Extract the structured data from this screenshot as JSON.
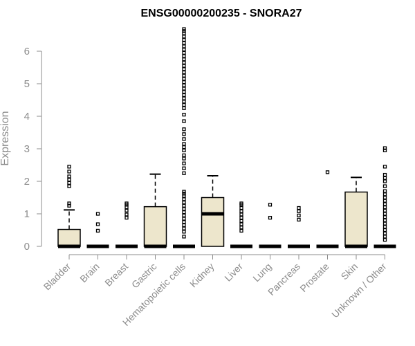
{
  "chart_data": {
    "type": "boxplot",
    "title": "ENSG00000200235 - SNORA27",
    "xlabel": "",
    "ylabel": "Expression",
    "ylim": [
      0,
      6.7
    ],
    "y_ticks": [
      0,
      1,
      2,
      3,
      4,
      5,
      6
    ],
    "grid": false,
    "legend": "none",
    "colors": {
      "box_fill": "#ede6cc",
      "stroke": "#000000",
      "axis": "#8c8c8c",
      "label": "#8c8c8c",
      "title": "#000000"
    },
    "categories": [
      "Bladder",
      "Brain",
      "Breast",
      "Gastric",
      "Hematopoietic cells",
      "Kidney",
      "Liver",
      "Lung",
      "Pancreas",
      "Prostate",
      "Skin",
      "Unknown / Other"
    ],
    "boxes": [
      {
        "q1": 0,
        "median": 0,
        "q3": 0.52,
        "whisker_low": 0,
        "whisker_high": 1.12,
        "outliers": [
          1.25,
          1.32,
          1.85,
          1.95,
          2.05,
          2.15,
          2.3,
          2.45
        ]
      },
      {
        "q1": 0,
        "median": 0,
        "q3": 0,
        "whisker_low": 0,
        "whisker_high": 0,
        "outliers": [
          0.48,
          0.68,
          1.0
        ]
      },
      {
        "q1": 0,
        "median": 0,
        "q3": 0,
        "whisker_low": 0,
        "whisker_high": 0,
        "outliers": [
          0.88,
          0.98,
          1.1,
          1.2,
          1.28,
          1.32
        ]
      },
      {
        "q1": 0,
        "median": 0,
        "q3": 1.22,
        "whisker_low": 0,
        "whisker_high": 2.22,
        "outliers": []
      },
      {
        "q1": 0,
        "median": 0,
        "q3": 0,
        "whisker_low": 0,
        "whisker_high": 0,
        "outliers": [
          0.3,
          0.45,
          0.55,
          0.65,
          0.75,
          0.85,
          0.95,
          1.05,
          1.15,
          1.25,
          1.35,
          1.45,
          1.55,
          1.62,
          1.68,
          2.25,
          2.4,
          2.55,
          2.7,
          2.8,
          2.95,
          3.05,
          3.15,
          3.3,
          3.45,
          3.6,
          3.85,
          4.05,
          4.25,
          4.35,
          4.45,
          4.55,
          4.65,
          4.75,
          4.85,
          4.95,
          5.05,
          5.15,
          5.25,
          5.35,
          5.45,
          5.55,
          5.65,
          5.75,
          5.85,
          5.95,
          6.05,
          6.15,
          6.25,
          6.35,
          6.45,
          6.55,
          6.62,
          6.68
        ]
      },
      {
        "q1": 0,
        "median": 1.0,
        "q3": 1.5,
        "whisker_low": 0,
        "whisker_high": 2.17,
        "outliers": []
      },
      {
        "q1": 0,
        "median": 0,
        "q3": 0,
        "whisker_low": 0,
        "whisker_high": 0,
        "outliers": [
          0.48,
          0.58,
          0.68,
          0.78,
          0.88,
          0.98,
          1.08,
          1.18,
          1.28,
          1.32
        ]
      },
      {
        "q1": 0,
        "median": 0,
        "q3": 0,
        "whisker_low": 0,
        "whisker_high": 0,
        "outliers": [
          0.88,
          1.28
        ]
      },
      {
        "q1": 0,
        "median": 0,
        "q3": 0,
        "whisker_low": 0,
        "whisker_high": 0,
        "outliers": [
          0.82,
          0.95,
          1.08,
          1.18
        ]
      },
      {
        "q1": 0,
        "median": 0,
        "q3": 0,
        "whisker_low": 0,
        "whisker_high": 0,
        "outliers": [
          2.28
        ]
      },
      {
        "q1": 0,
        "median": 0,
        "q3": 1.67,
        "whisker_low": 0,
        "whisker_high": 2.12,
        "outliers": []
      },
      {
        "q1": 0,
        "median": 0,
        "q3": 0,
        "whisker_low": 0,
        "whisker_high": 0,
        "outliers": [
          0.2,
          0.3,
          0.4,
          0.5,
          0.6,
          0.7,
          0.8,
          0.9,
          1.0,
          1.1,
          1.2,
          1.3,
          1.4,
          1.5,
          1.6,
          1.7,
          1.85,
          2.0,
          2.1,
          2.2,
          2.45,
          2.95,
          3.02
        ]
      }
    ]
  }
}
